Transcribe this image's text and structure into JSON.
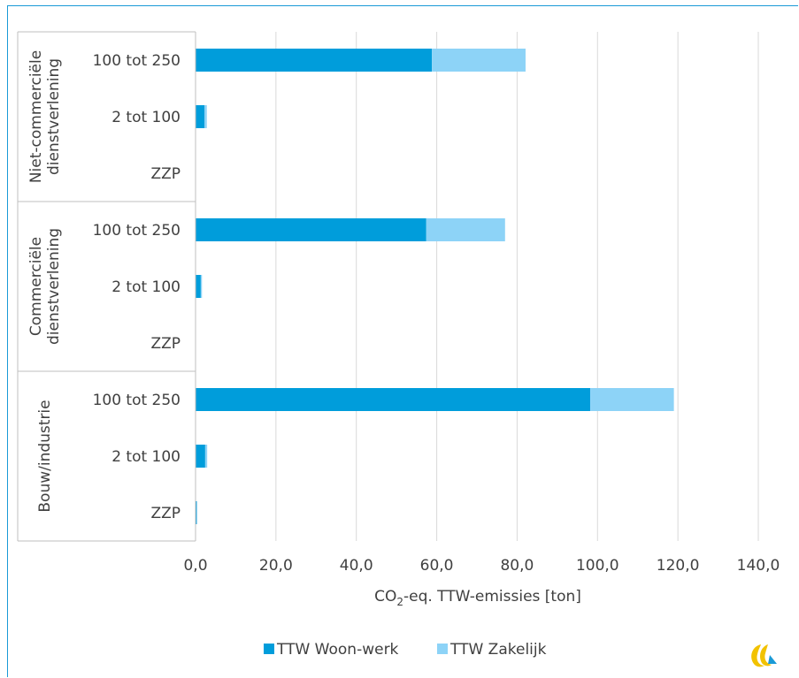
{
  "chart_data": {
    "type": "bar",
    "orientation": "horizontal",
    "stacked": true,
    "xlabel": "CO2-eq. TTW-emissies [ton]",
    "xlabel_main": "CO",
    "xlabel_sub": "2",
    "xlabel_rest": "-eq. TTW-emissies [ton]",
    "xlim": [
      0,
      140
    ],
    "xticks": [
      "0,0",
      "20,0",
      "40,0",
      "60,0",
      "80,0",
      "100,0",
      "120,0",
      "140,0"
    ],
    "grid": true,
    "legend_position": "bottom",
    "groups": [
      {
        "name": "Niet-commerciële dienstverlening",
        "name_lines": [
          "Niet-commerciële",
          "dienstverlening"
        ],
        "categories": [
          "100 tot 250",
          "2 tot 100",
          "ZZP"
        ],
        "woon_werk": [
          58.8,
          2.2,
          0.0
        ],
        "zakelijk": [
          23.3,
          0.6,
          0.0
        ]
      },
      {
        "name": "Commerciële dienstverlening",
        "name_lines": [
          "Commerciële",
          "dienstverlening"
        ],
        "categories": [
          "100 tot 250",
          "2 tot 100",
          "ZZP"
        ],
        "woon_werk": [
          57.4,
          1.3,
          0.1
        ],
        "zakelijk": [
          19.6,
          0.3,
          0.0
        ]
      },
      {
        "name": "Bouw/industrie",
        "name_lines": [
          "Bouw/industrie"
        ],
        "categories": [
          "100 tot 250",
          "2 tot 100",
          "ZZP"
        ],
        "woon_werk": [
          98.2,
          2.4,
          0.3
        ],
        "zakelijk": [
          20.8,
          0.5,
          0.1
        ]
      }
    ],
    "series": [
      {
        "name": "TTW Woon-werk",
        "color": "#009ddb"
      },
      {
        "name": "TTW Zakelijk",
        "color": "#8dd3f7"
      }
    ]
  },
  "logo_icon": "ce-delft-logo-icon"
}
